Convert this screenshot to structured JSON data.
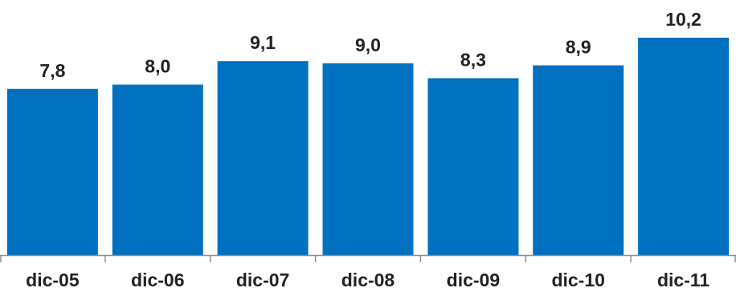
{
  "chart_data": {
    "type": "bar",
    "categories": [
      "dic-05",
      "dic-06",
      "dic-07",
      "dic-08",
      "dic-09",
      "dic-10",
      "dic-11"
    ],
    "values": [
      7.8,
      8.0,
      9.1,
      9.0,
      8.3,
      8.9,
      10.2
    ],
    "value_labels": [
      "7,8",
      "8,0",
      "9,1",
      "9,0",
      "8,3",
      "8,9",
      "10,2"
    ],
    "title": "",
    "xlabel": "",
    "ylabel": "",
    "ylim": [
      0,
      11.3
    ],
    "grid": false,
    "legend": "none",
    "colors": {
      "bar": "#0070C0",
      "axis": "#8c8c8c"
    }
  }
}
